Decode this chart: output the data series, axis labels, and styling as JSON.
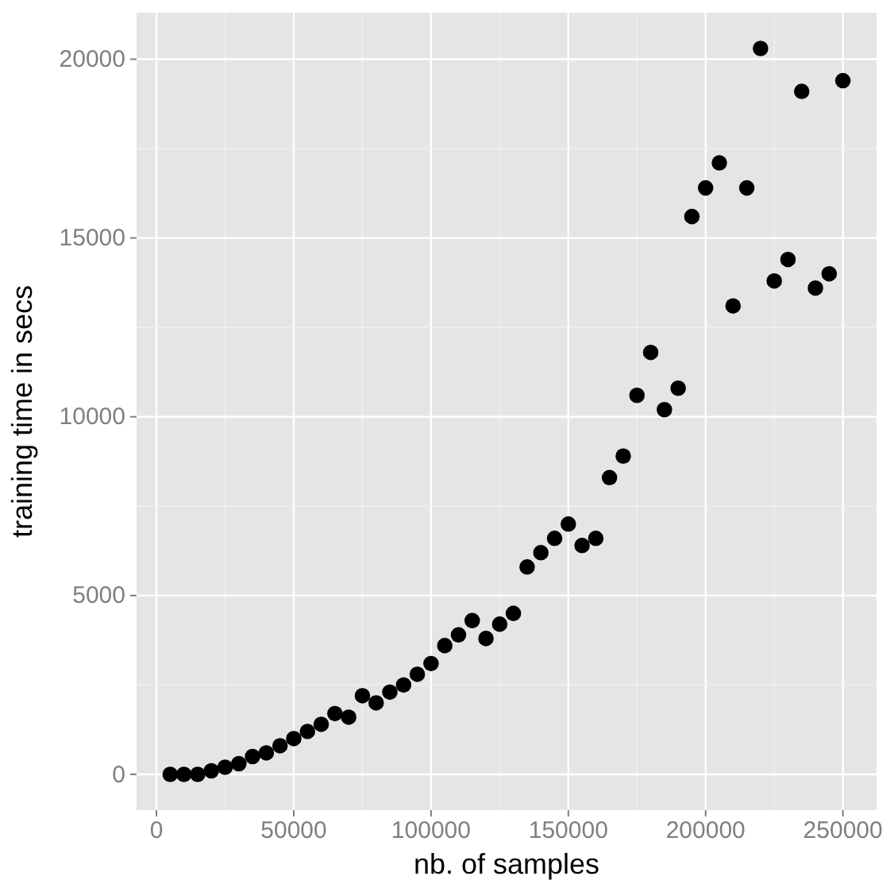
{
  "chart_data": {
    "type": "scatter",
    "xlabel": "nb. of samples",
    "ylabel": "training time in secs",
    "x": [
      5000,
      10000,
      15000,
      20000,
      25000,
      30000,
      35000,
      40000,
      45000,
      50000,
      55000,
      60000,
      65000,
      70000,
      75000,
      80000,
      85000,
      90000,
      95000,
      100000,
      105000,
      110000,
      115000,
      120000,
      125000,
      130000,
      135000,
      140000,
      145000,
      150000,
      155000,
      160000,
      165000,
      170000,
      175000,
      180000,
      185000,
      190000,
      195000,
      200000,
      205000,
      210000,
      215000,
      220000,
      225000,
      230000,
      235000,
      240000,
      245000,
      250000
    ],
    "series": [
      {
        "color": "#000000",
        "values": [
          0,
          0,
          0,
          100,
          200,
          300,
          500,
          600,
          800,
          1000,
          1200,
          1400,
          1700,
          1600,
          2200,
          2000,
          2300,
          2500,
          2800,
          3100,
          3600,
          3900,
          4300,
          3800,
          4200,
          4500,
          5800,
          6200,
          6600,
          7000,
          6400,
          6600,
          8300,
          8900,
          10600,
          11800,
          10200,
          10800,
          15600,
          16400,
          17100,
          13100,
          16400,
          20300,
          13800,
          14400,
          19100,
          13600,
          14000,
          19400
        ]
      }
    ],
    "xlim": [
      -7250,
      262250
    ],
    "ylim": [
      -1000,
      21300
    ],
    "xticks": [
      0,
      50000,
      100000,
      150000,
      200000,
      250000
    ],
    "yticks": [
      0,
      5000,
      10000,
      15000,
      20000
    ],
    "grid": true,
    "marker": "circle"
  }
}
